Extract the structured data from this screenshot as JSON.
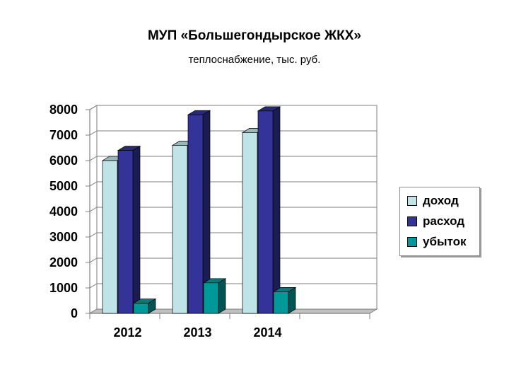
{
  "title": "МУП «Большегондырское ЖКХ»",
  "subtitle": "теплоснабжение, тыс. руб.",
  "chart_data": {
    "type": "bar",
    "categories": [
      "2012",
      "2013",
      "2014"
    ],
    "series": [
      {
        "name": "доход",
        "values": [
          6000,
          6600,
          7100
        ],
        "color": "#bfe3e6"
      },
      {
        "name": "расход",
        "values": [
          6400,
          7800,
          7950
        ],
        "color": "#333399"
      },
      {
        "name": "убыток",
        "values": [
          400,
          1200,
          850
        ],
        "color": "#009999"
      }
    ],
    "yticks": [
      "0",
      "1000",
      "2000",
      "3000",
      "4000",
      "5000",
      "6000",
      "7000",
      "8000"
    ],
    "ylim": [
      0,
      8000
    ],
    "grid": true,
    "legend": "right"
  }
}
